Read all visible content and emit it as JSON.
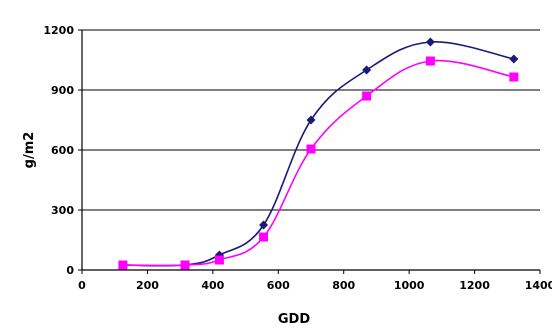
{
  "chart_data": {
    "type": "line",
    "title": "",
    "xlabel": "GDD",
    "ylabel": "g/m2",
    "xlim": [
      0,
      1400
    ],
    "ylim": [
      0,
      1200
    ],
    "x_ticks": [
      0,
      200,
      400,
      600,
      800,
      1000,
      1200,
      1400
    ],
    "y_ticks": [
      0,
      300,
      600,
      900,
      1200
    ],
    "x_tick_labels": [
      "0",
      "200",
      "400",
      "600",
      "800",
      "1000",
      "1200",
      "1400"
    ],
    "y_tick_labels": [
      "0",
      "300",
      "600",
      "900",
      "1200"
    ],
    "grid": "horizontal",
    "legend": "none",
    "series": [
      {
        "color": "#1a1a7a",
        "marker": "diamond",
        "x": [
          125,
          315,
          420,
          555,
          700,
          870,
          1065,
          1320
        ],
        "y": [
          25,
          25,
          75,
          225,
          750,
          1000,
          1140,
          1055
        ]
      },
      {
        "color": "#ff00ff",
        "marker": "square",
        "x": [
          125,
          315,
          420,
          555,
          700,
          870,
          1065,
          1320
        ],
        "y": [
          25,
          25,
          50,
          165,
          605,
          870,
          1045,
          965
        ]
      }
    ]
  }
}
